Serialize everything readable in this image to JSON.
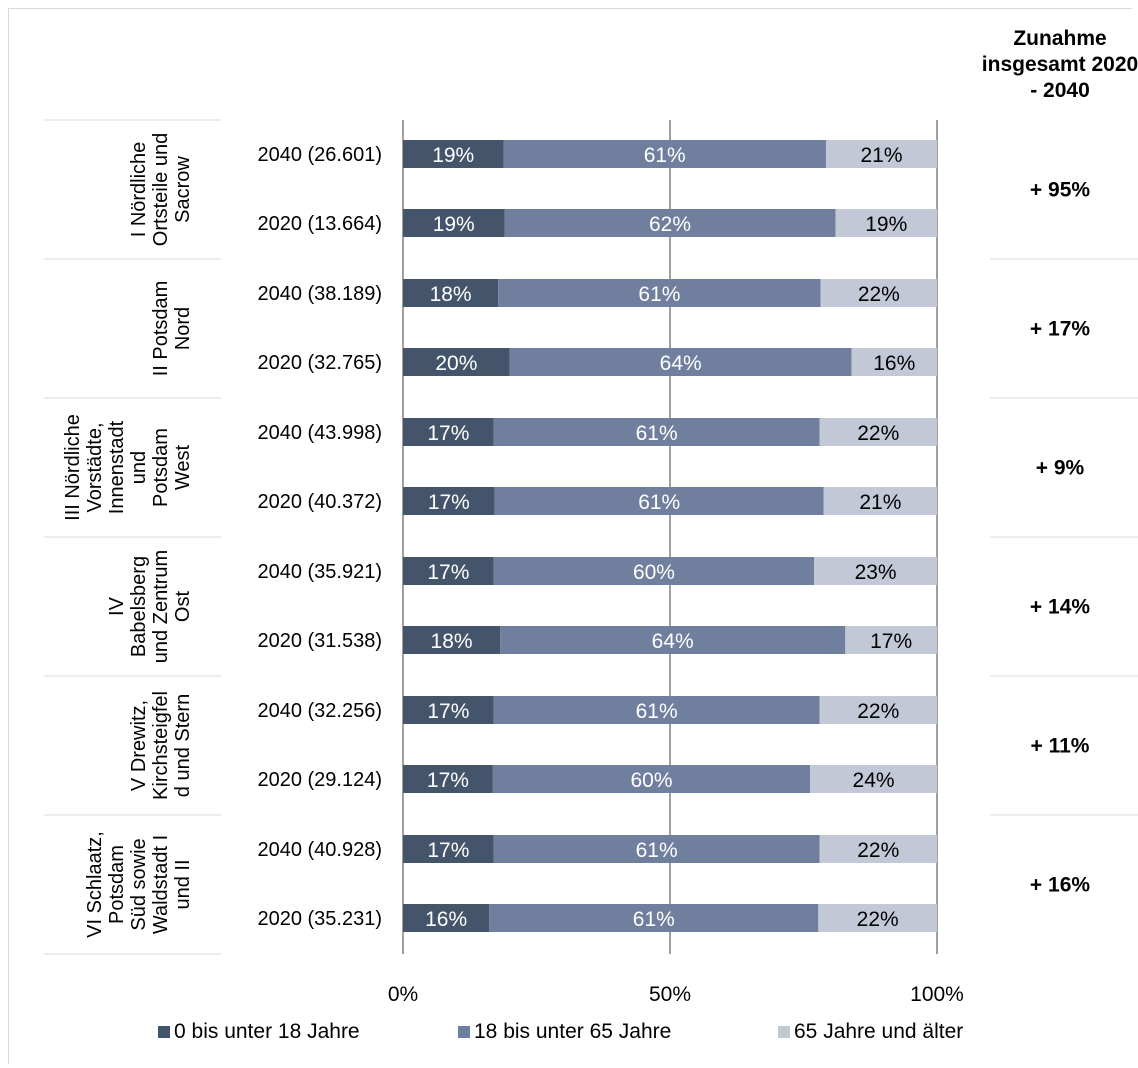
{
  "chart_data": {
    "type": "bar",
    "orientation": "horizontal",
    "stacked": "100%",
    "title": "",
    "xlabel": "",
    "ylabel": "",
    "xlim": [
      0,
      100
    ],
    "x_ticks": [
      "0%",
      "50%",
      "100%"
    ],
    "grid": "vertical",
    "legend_position": "bottom",
    "series": [
      {
        "name": "0 bis unter 18 Jahre",
        "color": "#44546a"
      },
      {
        "name": "18 bis unter 65 Jahre",
        "color": "#707f9e"
      },
      {
        "name": "65 Jahre und älter",
        "color": "#c3c8d6"
      }
    ],
    "right_header": "Zunahme insgesamt 2020 - 2040",
    "groups": [
      {
        "name": "I Nördliche Ortsteile und Sacrow",
        "name_lines": [
          "I Nördliche",
          "Ortsteile und",
          "Sacrow"
        ],
        "increase": "+ 95%",
        "rows": [
          {
            "label": "2040 (26.601)",
            "values": [
              19,
              61,
              21
            ],
            "labels": [
              "19%",
              "61%",
              "21%"
            ]
          },
          {
            "label": "2020 (13.664)",
            "values": [
              19,
              62,
              19
            ],
            "labels": [
              "19%",
              "62%",
              "19%"
            ]
          }
        ]
      },
      {
        "name": "II Potsdam Nord",
        "name_lines": [
          "II Potsdam",
          "Nord"
        ],
        "increase": "+ 17%",
        "rows": [
          {
            "label": "2040 (38.189)",
            "values": [
              18,
              61,
              22
            ],
            "labels": [
              "18%",
              "61%",
              "22%"
            ]
          },
          {
            "label": "2020 (32.765)",
            "values": [
              20,
              64,
              16
            ],
            "labels": [
              "20%",
              "64%",
              "16%"
            ]
          }
        ]
      },
      {
        "name": "III Nördliche Vorstädte, Innenstadt und Potsdam West",
        "name_lines": [
          "III Nördliche",
          "Vorstädte,",
          "Innenstadt",
          "und",
          "Potsdam",
          "West"
        ],
        "increase": "+ 9%",
        "rows": [
          {
            "label": "2040 (43.998)",
            "values": [
              17,
              61,
              22
            ],
            "labels": [
              "17%",
              "61%",
              "22%"
            ]
          },
          {
            "label": "2020 (40.372)",
            "values": [
              17,
              61,
              21
            ],
            "labels": [
              "17%",
              "61%",
              "21%"
            ]
          }
        ]
      },
      {
        "name": "IV Babelsberg und Zentrum Ost",
        "name_lines": [
          "IV",
          "Babelsberg",
          "und Zentrum",
          "Ost"
        ],
        "increase": "+ 14%",
        "rows": [
          {
            "label": "2040 (35.921)",
            "values": [
              17,
              60,
              23
            ],
            "labels": [
              "17%",
              "60%",
              "23%"
            ]
          },
          {
            "label": "2020 (31.538)",
            "values": [
              18,
              64,
              17
            ],
            "labels": [
              "18%",
              "64%",
              "17%"
            ]
          }
        ]
      },
      {
        "name": "V Drewitz, Kirchsteigfeld und Stern",
        "name_lines": [
          "V Drewitz,",
          "Kirchsteigfel",
          "d und Stern"
        ],
        "increase": "+ 11%",
        "rows": [
          {
            "label": "2040 (32.256)",
            "values": [
              17,
              61,
              22
            ],
            "labels": [
              "17%",
              "61%",
              "22%"
            ]
          },
          {
            "label": "2020 (29.124)",
            "values": [
              17,
              60,
              24
            ],
            "labels": [
              "17%",
              "60%",
              "24%"
            ]
          }
        ]
      },
      {
        "name": "VI Schlaatz, Potsdam Süd sowie Waldstadt I und II",
        "name_lines": [
          "VI Schlaatz,",
          "Potsdam",
          "Süd sowie",
          "Waldstadt I",
          "und II"
        ],
        "increase": "+ 16%",
        "rows": [
          {
            "label": "2040 (40.928)",
            "values": [
              17,
              61,
              22
            ],
            "labels": [
              "17%",
              "61%",
              "22%"
            ]
          },
          {
            "label": "2020 (35.231)",
            "values": [
              16,
              61,
              22
            ],
            "labels": [
              "16%",
              "61%",
              "22%"
            ]
          }
        ]
      }
    ]
  }
}
